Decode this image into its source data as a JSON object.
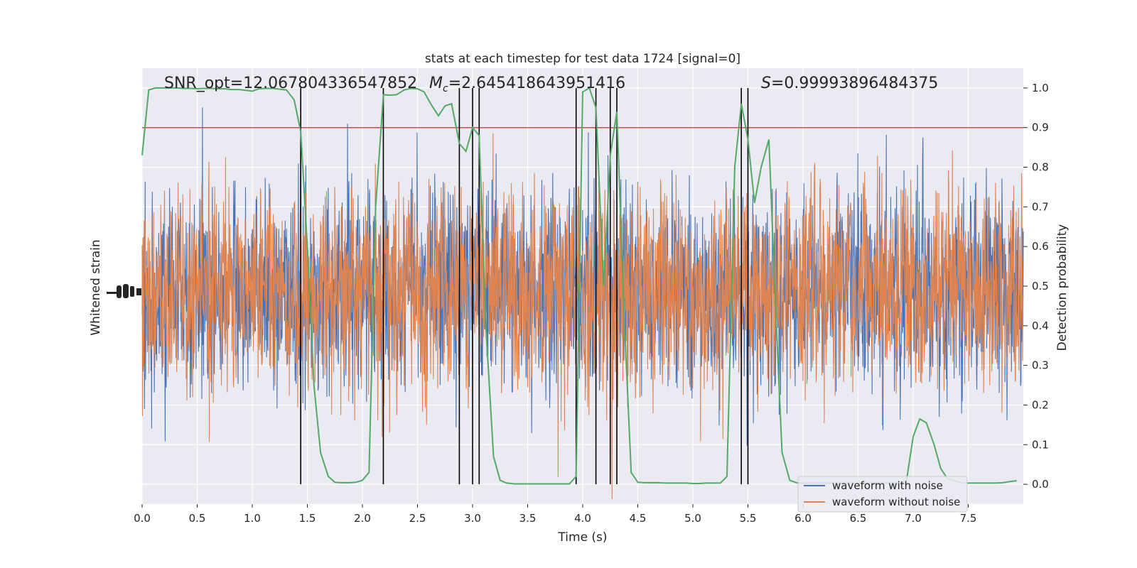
{
  "chart_data": {
    "type": "line",
    "title": "stats at each timestep for test data 1724 [signal=0]",
    "xlabel": "Time (s)",
    "ylabel_left": "Whitened strain",
    "ylabel_right": "Detection probability",
    "xlim": [
      0.0,
      8.0
    ],
    "ylim_right": [
      -0.05,
      1.05
    ],
    "xticks": [
      0.0,
      0.5,
      1.0,
      1.5,
      2.0,
      2.5,
      3.0,
      3.5,
      4.0,
      4.5,
      5.0,
      5.5,
      6.0,
      6.5,
      7.0,
      7.5
    ],
    "xtick_labels": [
      "0.0",
      "0.5",
      "1.0",
      "1.5",
      "2.0",
      "2.5",
      "3.0",
      "3.5",
      "4.0",
      "4.5",
      "5.0",
      "5.5",
      "6.0",
      "6.5",
      "7.0",
      "7.5"
    ],
    "yticks_right": [
      0.0,
      0.1,
      0.2,
      0.3,
      0.4,
      0.5,
      0.6,
      0.7,
      0.8,
      0.9,
      1.0
    ],
    "ytick_labels_right": [
      "0.0",
      "0.1",
      "0.2",
      "0.3",
      "0.4",
      "0.5",
      "0.6",
      "0.7",
      "0.8",
      "0.9",
      "1.0"
    ],
    "grid": true,
    "legend_position": "bottom-right",
    "annotations": {
      "snr": "SNR_opt=12.067804336547852",
      "mc_symbol": "M",
      "mc_sub": "c",
      "mc_value": "=2.645418643951416",
      "s_symbol": "S",
      "s_value": "=0.99993896484375"
    },
    "threshold": 0.9,
    "threshold_color": "#c44e52",
    "vertical_lines_x": [
      1.44,
      2.19,
      2.88,
      3.0,
      3.06,
      3.94,
      4.12,
      4.25,
      4.31,
      5.44,
      5.5
    ],
    "series": [
      {
        "name": "waveform with noise",
        "color": "#4c72b0",
        "kind": "strain"
      },
      {
        "name": "waveform without noise",
        "color": "#dd8452",
        "kind": "strain"
      },
      {
        "color": "#55a868",
        "kind": "probability",
        "x": [
          0.0,
          0.06,
          0.12,
          0.19,
          0.25,
          0.31,
          0.38,
          0.44,
          0.5,
          0.56,
          0.62,
          0.69,
          0.75,
          0.81,
          0.88,
          0.94,
          1.0,
          1.06,
          1.12,
          1.19,
          1.25,
          1.31,
          1.38,
          1.44,
          1.5,
          1.56,
          1.62,
          1.69,
          1.75,
          1.81,
          1.88,
          1.94,
          2.0,
          2.06,
          2.12,
          2.19,
          2.25,
          2.31,
          2.38,
          2.44,
          2.5,
          2.56,
          2.62,
          2.69,
          2.75,
          2.81,
          2.88,
          2.94,
          3.0,
          3.06,
          3.12,
          3.19,
          3.25,
          3.31,
          3.38,
          3.44,
          3.5,
          3.56,
          3.62,
          3.69,
          3.75,
          3.81,
          3.88,
          3.94,
          4.0,
          4.06,
          4.12,
          4.19,
          4.25,
          4.31,
          4.38,
          4.44,
          4.5,
          4.56,
          4.62,
          4.69,
          4.75,
          4.81,
          4.88,
          4.94,
          5.0,
          5.06,
          5.12,
          5.19,
          5.25,
          5.31,
          5.38,
          5.44,
          5.5,
          5.56,
          5.62,
          5.69,
          5.75,
          5.81,
          5.88,
          5.94,
          6.0,
          6.06,
          6.12,
          6.19,
          6.25,
          6.31,
          6.38,
          6.44,
          6.5,
          6.56,
          6.62,
          6.69,
          6.75,
          6.81,
          6.88,
          6.94,
          7.0,
          7.06,
          7.12,
          7.19,
          7.25,
          7.31,
          7.38,
          7.44,
          7.5,
          7.56,
          7.62,
          7.69,
          7.75,
          7.81,
          7.88,
          7.94
        ],
        "y": [
          0.83,
          0.995,
          1.0,
          1.0,
          1.0,
          1.0,
          0.999,
          0.999,
          0.998,
          0.999,
          0.999,
          0.998,
          0.998,
          0.996,
          0.996,
          0.994,
          0.992,
          0.998,
          0.999,
          0.999,
          0.997,
          0.995,
          0.97,
          0.89,
          0.6,
          0.25,
          0.08,
          0.02,
          0.005,
          0.004,
          0.004,
          0.005,
          0.01,
          0.03,
          0.7,
          0.983,
          0.982,
          0.983,
          0.995,
          0.999,
          0.998,
          0.99,
          0.96,
          0.93,
          0.955,
          0.96,
          0.86,
          0.84,
          0.9,
          0.88,
          0.4,
          0.07,
          0.01,
          0.003,
          0.001,
          0.001,
          0.001,
          0.001,
          0.001,
          0.001,
          0.001,
          0.001,
          0.001,
          0.02,
          0.99,
          1.0,
          0.95,
          0.5,
          0.83,
          0.94,
          0.4,
          0.03,
          0.005,
          0.004,
          0.004,
          0.004,
          0.003,
          0.003,
          0.003,
          0.003,
          0.002,
          0.002,
          0.003,
          0.003,
          0.003,
          0.02,
          0.8,
          0.96,
          0.87,
          0.71,
          0.8,
          0.87,
          0.45,
          0.08,
          0.01,
          0.004,
          0.003,
          0.003,
          0.003,
          0.003,
          0.003,
          0.003,
          0.003,
          0.003,
          0.003,
          0.003,
          0.003,
          0.003,
          0.003,
          0.003,
          0.003,
          0.01,
          0.12,
          0.165,
          0.155,
          0.1,
          0.04,
          0.015,
          0.008,
          0.004,
          0.003,
          0.003,
          0.003,
          0.003,
          0.003,
          0.004,
          0.007,
          0.009
        ]
      }
    ]
  }
}
